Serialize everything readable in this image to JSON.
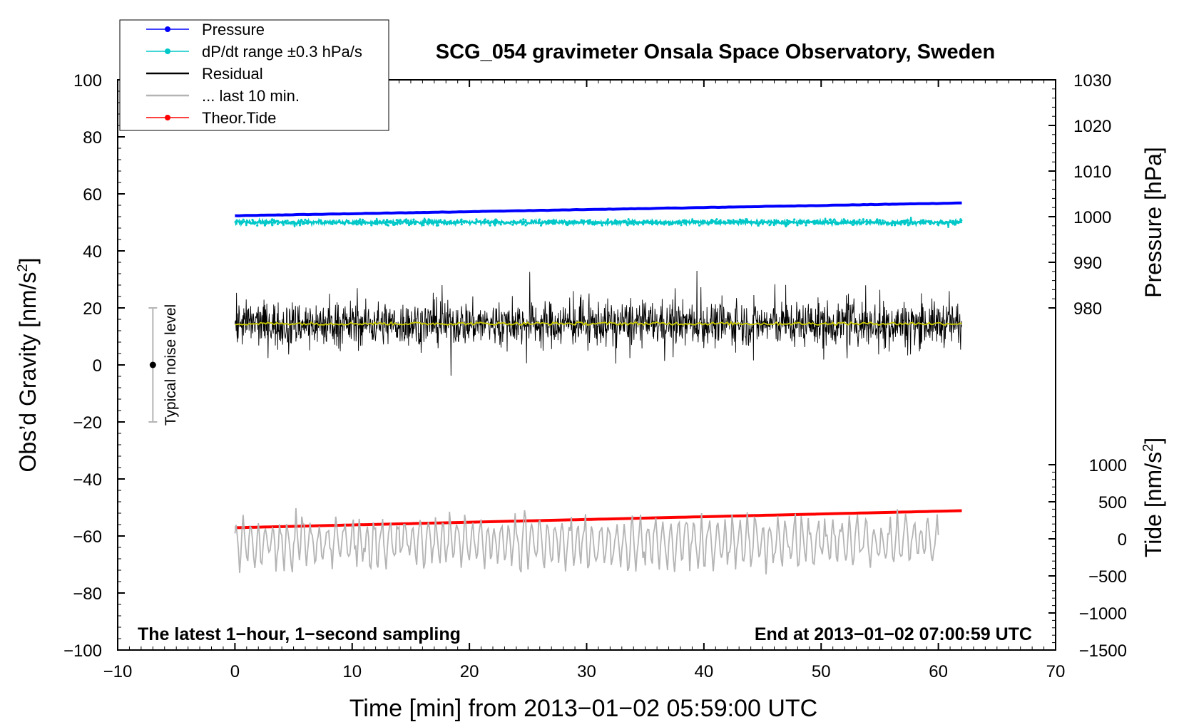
{
  "chart_data": {
    "type": "line",
    "title": "SCG_054 gravimeter Onsala Space Observatory, Sweden",
    "xlabel": "Time [min] from 2013−01−02 05:59:00 UTC",
    "ylabel_left_main": "Obs’d Gravity [nm/s",
    "ylabel_left_sup": "2",
    "ylabel_left_end": "]",
    "ylabel_right_pressure": "Pressure [hPa]",
    "ylabel_right_tide_main": "Tide [nm/s",
    "ylabel_right_tide_sup": "2",
    "ylabel_right_tide_end": "]",
    "xlim": [
      -10,
      70
    ],
    "ylim": [
      -100,
      100
    ],
    "x_ticks": [
      -10,
      0,
      10,
      20,
      30,
      40,
      50,
      60,
      70
    ],
    "x_tick_labels": [
      "−10",
      "0",
      "10",
      "20",
      "30",
      "40",
      "50",
      "60",
      "70"
    ],
    "y_ticks": [
      -100,
      -80,
      -60,
      -40,
      -20,
      0,
      20,
      40,
      60,
      80,
      100
    ],
    "y_tick_labels": [
      "−100",
      "−80",
      "−60",
      "−40",
      "−20",
      "0",
      "20",
      "40",
      "60",
      "80",
      "100"
    ],
    "pressure_axis": {
      "range": [
        970,
        1030
      ],
      "ticks": [
        980,
        990,
        1000,
        1010,
        1020,
        1030
      ],
      "tick_labels": [
        "980",
        "990",
        "1000",
        "1010",
        "1020",
        "1030"
      ]
    },
    "tide_axis": {
      "range": [
        -1500,
        1000
      ],
      "ticks": [
        -1500,
        -1000,
        -500,
        0,
        500,
        1000
      ],
      "tick_labels": [
        "−1500",
        "−1000",
        "−500",
        "0",
        "500",
        "1000"
      ]
    },
    "legend": [
      {
        "label": "Pressure",
        "color": "#0000ff",
        "marker": true
      },
      {
        "label": "dP/dt range ±0.3 hPa/s",
        "color": "#00c8c8",
        "marker": true
      },
      {
        "label": "Residual",
        "color": "#000000",
        "marker": false
      },
      {
        "label": "... last 10 min.",
        "color": "#b4b4b4",
        "marker": false
      },
      {
        "label": "Theor.Tide",
        "color": "#ff0000",
        "marker": true
      }
    ],
    "legend_position": "top-left",
    "series": [
      {
        "name": "Pressure",
        "axis": "pressure",
        "x": [
          0,
          62
        ],
        "y": [
          1000.2,
          1003.0
        ],
        "color": "#0000ff"
      },
      {
        "name": "dP/dt range ±0.3 hPa/s",
        "axis": "left",
        "x": [
          0,
          62
        ],
        "center": 50,
        "spread": 1.5,
        "color": "#00c8c8"
      },
      {
        "name": "Residual",
        "axis": "left",
        "x": [
          0,
          62
        ],
        "center": 14.5,
        "spread": 17,
        "color": "#000000"
      },
      {
        "name": "Residual smoothed",
        "axis": "left",
        "x": [
          0,
          62
        ],
        "center": 14.5,
        "color": "#c8c800"
      },
      {
        "name": "Theor.Tide",
        "axis": "tide",
        "x": [
          0,
          62
        ],
        "y": [
          150,
          380
        ],
        "color": "#ff0000"
      },
      {
        "name": "... last 10 min.",
        "axis": "left",
        "x": [
          0,
          60
        ],
        "center": -62,
        "spread": 13,
        "color": "#b4b4b4"
      }
    ],
    "noise_indicator": {
      "x": -7,
      "center": 0,
      "low": -20,
      "high": 20,
      "label": "Typical noise level"
    },
    "annotation_left": "The latest 1−hour, 1−second sampling",
    "annotation_right": "End at 2013−01−02 07:00:59 UTC"
  }
}
